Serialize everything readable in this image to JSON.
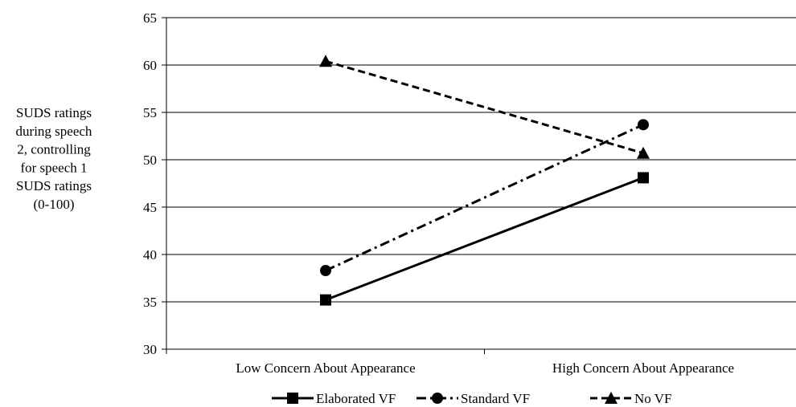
{
  "chart_data": {
    "type": "line",
    "title": "",
    "xlabel": "",
    "ylabel_lines": [
      "SUDS ratings",
      "during speech",
      "2, controlling",
      "for speech 1",
      "SUDS ratings",
      "(0-100)"
    ],
    "categories": [
      "Low Concern About Appearance",
      "High Concern About Appearance"
    ],
    "ylim": [
      30,
      65
    ],
    "yticks": [
      30,
      35,
      40,
      45,
      50,
      55,
      60,
      65
    ],
    "grid": true,
    "legend_position": "bottom",
    "series": [
      {
        "name": "Elaborated VF",
        "values": [
          35.2,
          48.1
        ],
        "marker": "square",
        "dash": "solid",
        "color": "#000000"
      },
      {
        "name": "Standard VF",
        "values": [
          38.3,
          53.7
        ],
        "marker": "circle",
        "dash": "dashdot",
        "color": "#000000"
      },
      {
        "name": "No VF",
        "values": [
          60.4,
          50.7
        ],
        "marker": "triangle",
        "dash": "dashed",
        "color": "#000000"
      }
    ]
  }
}
